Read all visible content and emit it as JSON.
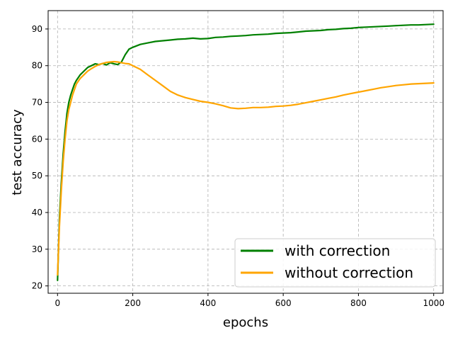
{
  "chart_data": {
    "type": "line",
    "title": "",
    "xlabel": "epochs",
    "ylabel": "test accuracy",
    "xlim": [
      -25,
      1025
    ],
    "ylim": [
      18,
      95
    ],
    "xticks": [
      0,
      200,
      400,
      600,
      800,
      1000
    ],
    "yticks": [
      20,
      30,
      40,
      50,
      60,
      70,
      80,
      90
    ],
    "grid": true,
    "legend_position": "lower-right",
    "series": [
      {
        "name": "with correction",
        "color": "#008000",
        "x": [
          0,
          5,
          10,
          15,
          20,
          25,
          30,
          35,
          40,
          45,
          50,
          60,
          70,
          80,
          90,
          100,
          110,
          120,
          130,
          140,
          150,
          160,
          170,
          180,
          190,
          200,
          220,
          240,
          260,
          280,
          300,
          320,
          340,
          360,
          380,
          400,
          420,
          440,
          460,
          480,
          500,
          520,
          540,
          560,
          580,
          600,
          620,
          640,
          660,
          680,
          700,
          720,
          740,
          760,
          780,
          800,
          820,
          840,
          860,
          880,
          900,
          920,
          940,
          960,
          980,
          1000
        ],
        "y": [
          21.5,
          38,
          48,
          56,
          62,
          67,
          70,
          72,
          73.5,
          75,
          76,
          77.5,
          78.5,
          79.5,
          80,
          80.5,
          80.3,
          80.6,
          80.2,
          80.8,
          80.5,
          80.3,
          81,
          83,
          84.5,
          85,
          85.8,
          86.2,
          86.6,
          86.8,
          87,
          87.2,
          87.3,
          87.5,
          87.3,
          87.4,
          87.7,
          87.8,
          88,
          88.1,
          88.2,
          88.4,
          88.5,
          88.6,
          88.8,
          88.9,
          89,
          89.2,
          89.4,
          89.5,
          89.6,
          89.8,
          89.9,
          90.1,
          90.2,
          90.4,
          90.5,
          90.6,
          90.7,
          90.8,
          90.9,
          91,
          91.1,
          91.1,
          91.2,
          91.3
        ]
      },
      {
        "name": "without correction",
        "color": "#ffa500",
        "x": [
          0,
          5,
          10,
          15,
          20,
          25,
          30,
          35,
          40,
          45,
          50,
          60,
          70,
          80,
          90,
          100,
          110,
          120,
          130,
          140,
          150,
          160,
          170,
          180,
          190,
          200,
          220,
          240,
          260,
          280,
          300,
          320,
          340,
          360,
          380,
          400,
          420,
          440,
          460,
          480,
          500,
          520,
          540,
          560,
          580,
          600,
          620,
          640,
          660,
          680,
          700,
          720,
          740,
          760,
          780,
          800,
          820,
          840,
          860,
          880,
          900,
          920,
          940,
          960,
          980,
          1000
        ],
        "y": [
          23,
          36,
          46,
          54,
          60,
          65,
          68,
          70,
          72,
          73.5,
          75,
          76.5,
          77.5,
          78.5,
          79.2,
          79.8,
          80.3,
          80.6,
          80.9,
          81,
          81.1,
          81,
          80.8,
          80.6,
          80.5,
          80,
          79,
          77.5,
          76,
          74.5,
          73,
          72,
          71.3,
          70.8,
          70.3,
          70,
          69.6,
          69.1,
          68.5,
          68.3,
          68.4,
          68.6,
          68.6,
          68.7,
          68.9,
          69,
          69.2,
          69.5,
          69.9,
          70.3,
          70.7,
          71.1,
          71.5,
          72,
          72.4,
          72.8,
          73.2,
          73.6,
          74,
          74.3,
          74.6,
          74.8,
          75,
          75.1,
          75.2,
          75.3
        ]
      }
    ]
  }
}
